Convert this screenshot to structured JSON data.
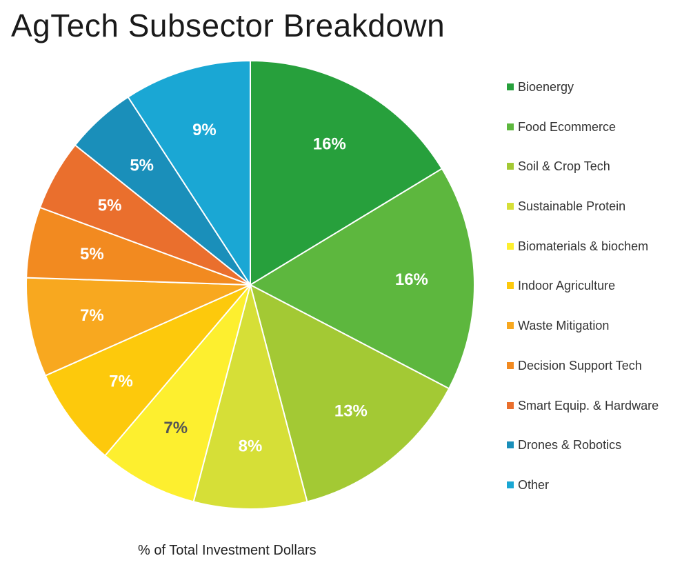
{
  "chart_data": {
    "type": "pie",
    "title": "AgTech Subsector Breakdown",
    "caption": "% of Total Investment Dollars",
    "legend_position": "right",
    "slices": [
      {
        "name": "Bioenergy",
        "value": 16,
        "label": "16%",
        "color": "#27a03c"
      },
      {
        "name": "Food Ecommerce",
        "value": 16,
        "label": "16%",
        "color": "#5db73e"
      },
      {
        "name": "Soil & Crop Tech",
        "value": 13,
        "label": "13%",
        "color": "#a3c934"
      },
      {
        "name": "Sustainable Protein",
        "value": 8,
        "label": "8%",
        "color": "#d6df37"
      },
      {
        "name": "Biomaterials & biochem",
        "value": 7,
        "label": "7%",
        "color": "#fdef2f"
      },
      {
        "name": "Indoor Agriculture",
        "value": 7,
        "label": "7%",
        "color": "#fdc90c"
      },
      {
        "name": "Waste Mitigation",
        "value": 7,
        "label": "7%",
        "color": "#f8a81f"
      },
      {
        "name": "Decision Support Tech",
        "value": 5,
        "label": "5%",
        "color": "#f28a20"
      },
      {
        "name": "Smart Equip. & Hardware",
        "value": 5,
        "label": "5%",
        "color": "#ea6f2d"
      },
      {
        "name": "Drones & Robotics",
        "value": 5,
        "label": "5%",
        "color": "#1a8fba"
      },
      {
        "name": "Other",
        "value": 9,
        "label": "9%",
        "color": "#1aa7d4"
      }
    ]
  }
}
